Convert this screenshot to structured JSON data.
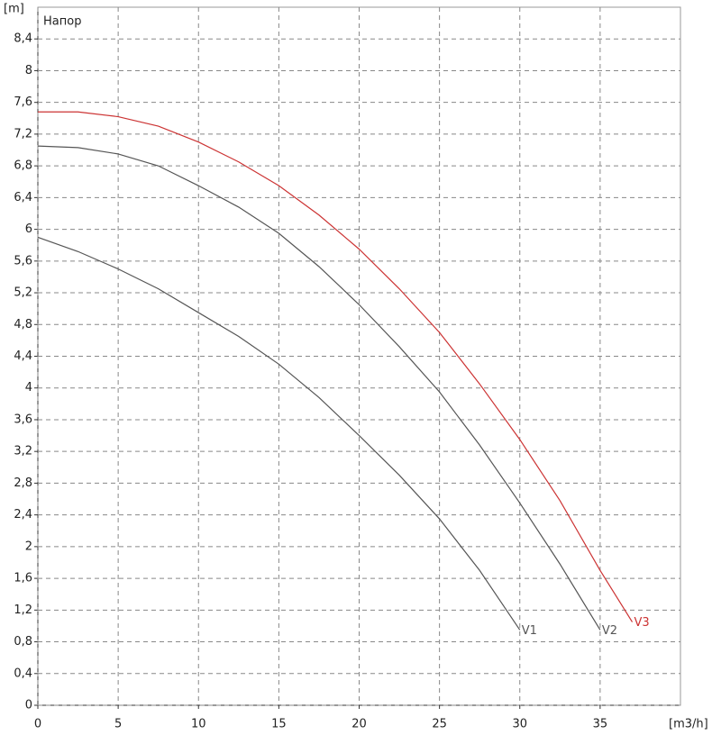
{
  "chart_data": {
    "type": "line",
    "title": "Напор",
    "y_label": "[m]",
    "x_label": "[m3/h]",
    "xlim": [
      0,
      40
    ],
    "ylim": [
      0,
      8.8
    ],
    "grid": true,
    "xticks": [
      0,
      5,
      10,
      15,
      20,
      25,
      30,
      35
    ],
    "yticks": [
      0,
      {
        "value": 0.4,
        "label": "0,4"
      },
      {
        "value": 0.8,
        "label": "0,8"
      },
      {
        "value": 1.2,
        "label": "1,2"
      },
      {
        "value": 1.6,
        "label": "1,6"
      },
      2,
      {
        "value": 2.4,
        "label": "2,4"
      },
      {
        "value": 2.8,
        "label": "2,8"
      },
      {
        "value": 3.2,
        "label": "3,2"
      },
      {
        "value": 3.6,
        "label": "3,6"
      },
      4,
      {
        "value": 4.4,
        "label": "4,4"
      },
      {
        "value": 4.8,
        "label": "4,8"
      },
      {
        "value": 5.2,
        "label": "5,2"
      },
      {
        "value": 5.6,
        "label": "5,6"
      },
      6,
      {
        "value": 6.4,
        "label": "6,4"
      },
      {
        "value": 6.8,
        "label": "6,8"
      },
      {
        "value": 7.2,
        "label": "7,2"
      },
      {
        "value": 7.6,
        "label": "7,6"
      },
      8,
      {
        "value": 8.4,
        "label": "8,4"
      }
    ],
    "series": [
      {
        "name": "V1",
        "color": "#555555",
        "x": [
          0,
          2.5,
          5,
          7.5,
          10,
          12.5,
          15,
          17.5,
          20,
          22.5,
          25,
          27.5,
          30
        ],
        "values": [
          5.9,
          5.72,
          5.5,
          5.25,
          4.95,
          4.65,
          4.3,
          3.88,
          3.4,
          2.9,
          2.35,
          1.7,
          0.95
        ]
      },
      {
        "name": "V2",
        "color": "#555555",
        "x": [
          0,
          2.5,
          5,
          7.5,
          10,
          12.5,
          15,
          17.5,
          20,
          22.5,
          25,
          27.5,
          30,
          32.5,
          35
        ],
        "values": [
          7.05,
          7.03,
          6.95,
          6.8,
          6.55,
          6.28,
          5.95,
          5.53,
          5.05,
          4.52,
          3.95,
          3.28,
          2.55,
          1.78,
          0.95
        ]
      },
      {
        "name": "V3",
        "color": "#cc3333",
        "x": [
          0,
          2.5,
          5,
          7.5,
          10,
          12.5,
          15,
          17.5,
          20,
          22.5,
          25,
          27.5,
          30,
          32.5,
          35,
          37
        ],
        "values": [
          7.48,
          7.48,
          7.42,
          7.3,
          7.1,
          6.85,
          6.55,
          6.18,
          5.75,
          5.25,
          4.7,
          4.05,
          3.35,
          2.58,
          1.7,
          1.05
        ]
      }
    ]
  }
}
